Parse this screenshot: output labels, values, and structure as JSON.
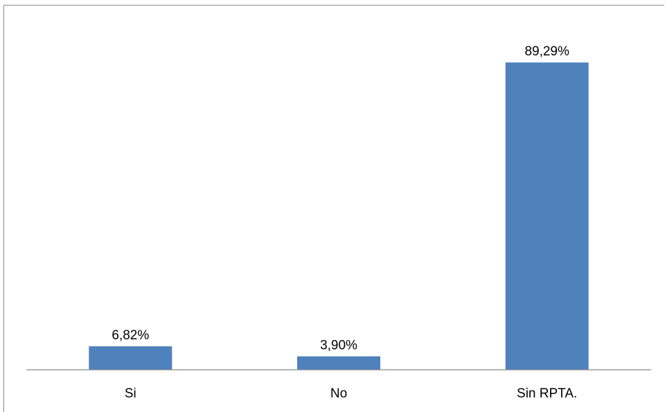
{
  "chart_data": {
    "type": "bar",
    "categories": [
      "Si",
      "No",
      "Sin RPTA."
    ],
    "values": [
      6.82,
      3.9,
      89.29
    ],
    "data_labels": [
      "6,82%",
      "3,90%",
      "89,29%"
    ],
    "unit": "%",
    "ylim": [
      0,
      100
    ],
    "grid": false,
    "legend": "none",
    "bar_color": "#4F81BD",
    "axis_color": "#888888"
  }
}
